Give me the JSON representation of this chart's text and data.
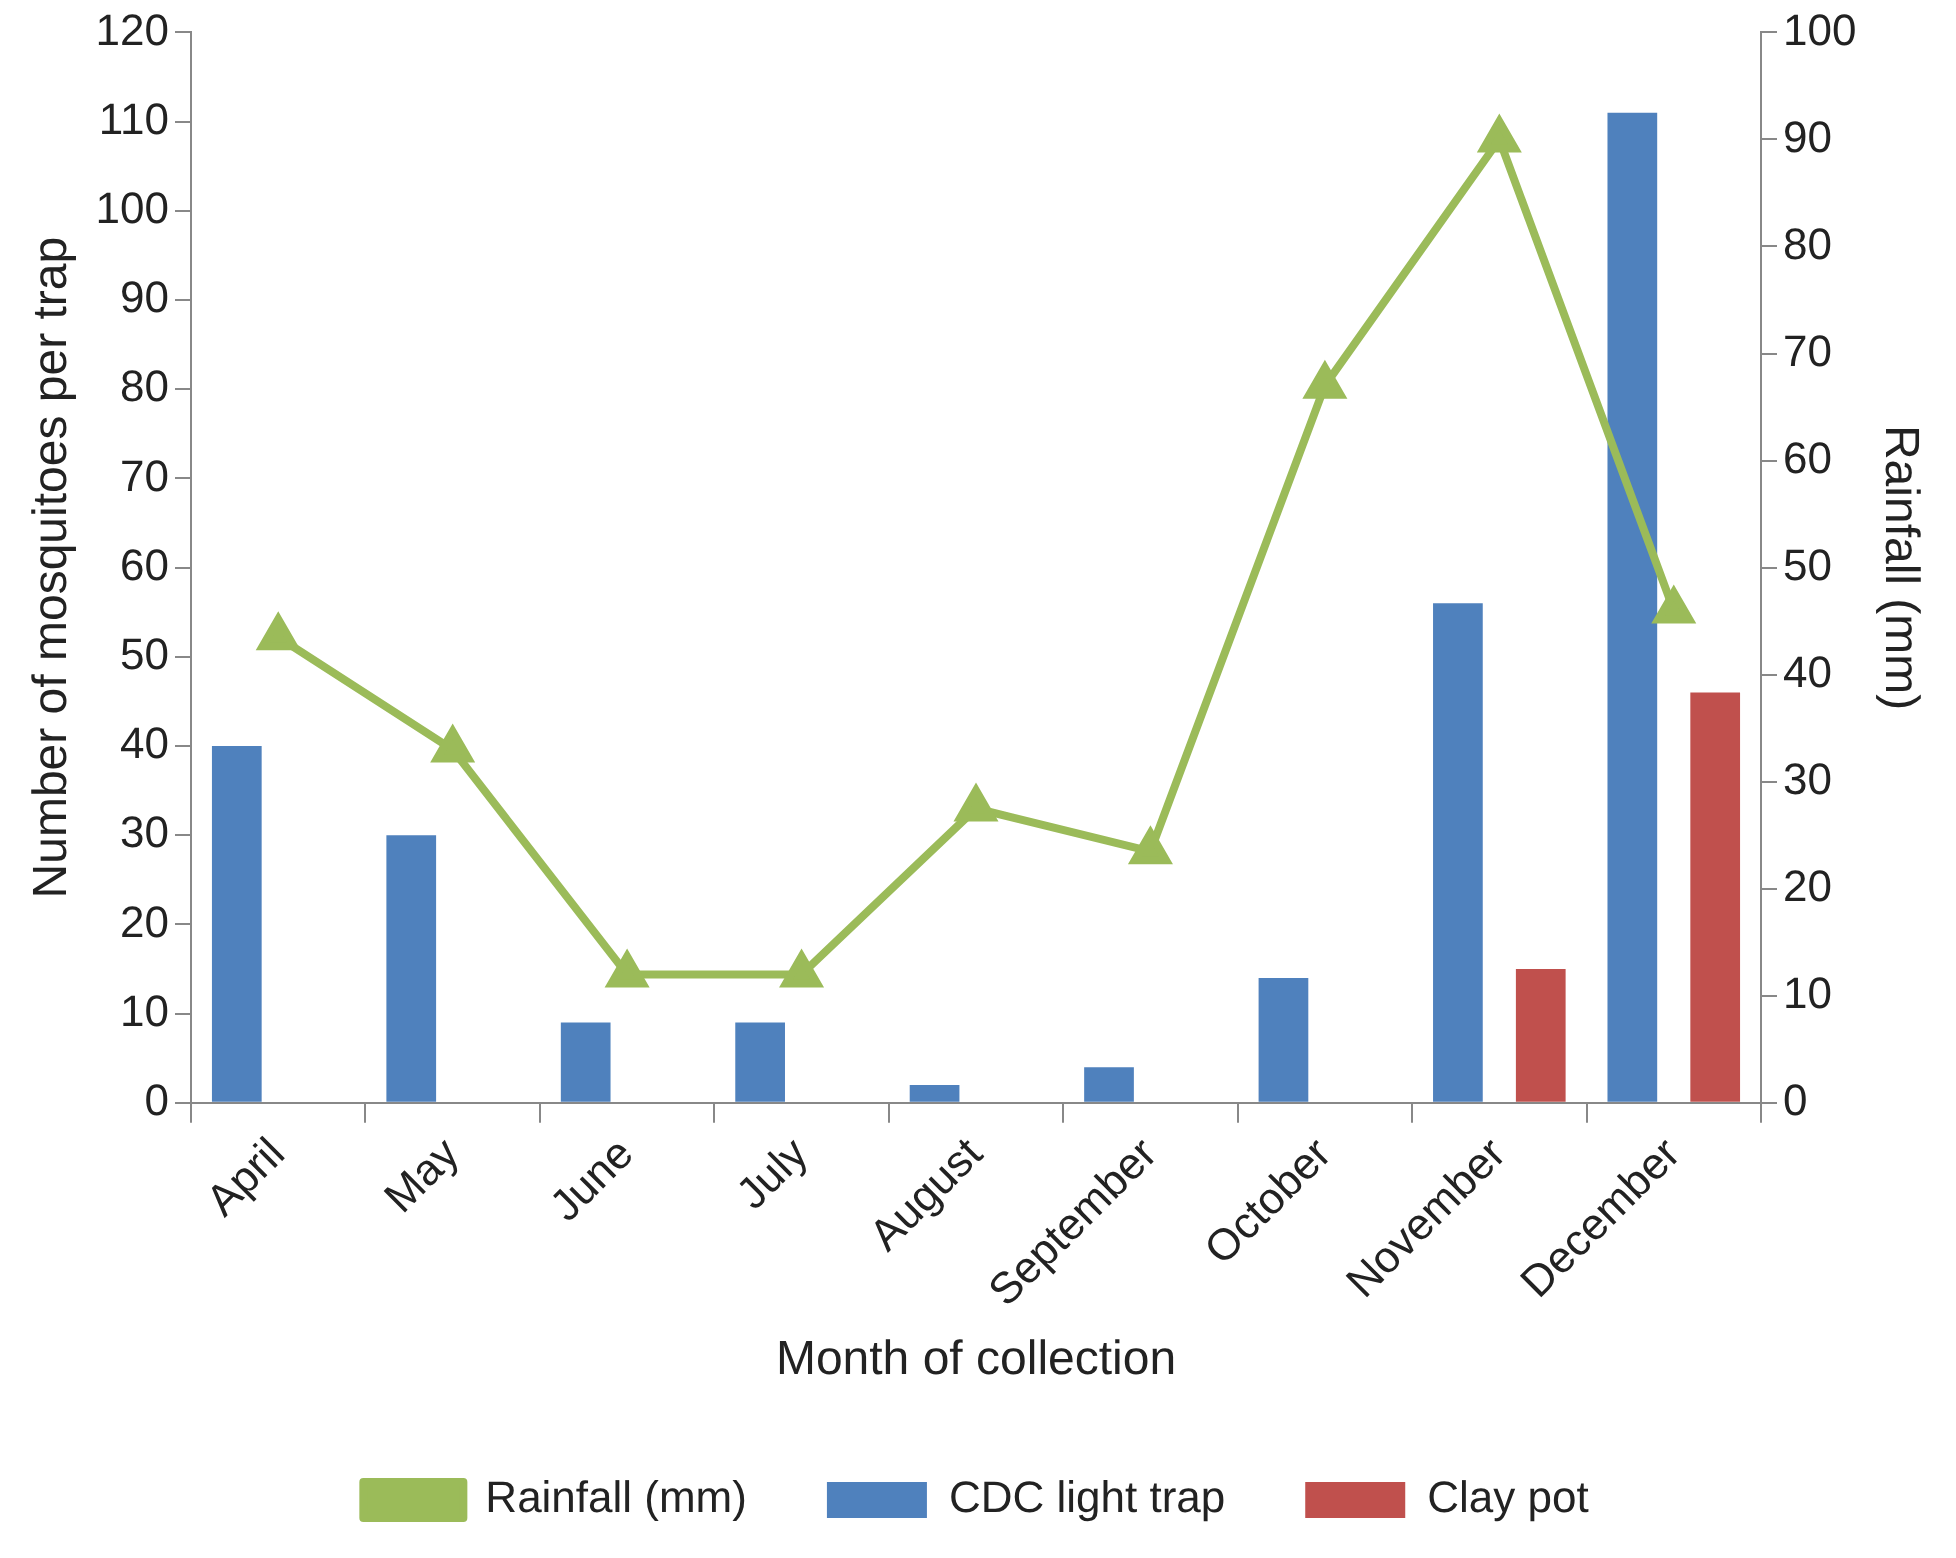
{
  "chart_data": {
    "type": "bar",
    "xlabel": "Month of collection",
    "ylabel": "Number of mosquitoes per trap",
    "y2label": "Rainfall (mm)",
    "categories": [
      "April",
      "May",
      "June",
      "July",
      "August",
      "September",
      "October",
      "November",
      "December"
    ],
    "series": [
      {
        "name": "CDC light trap",
        "color": "#4f81bd",
        "values": [
          40,
          30,
          9,
          9,
          2,
          4,
          14,
          56,
          111
        ]
      },
      {
        "name": "Clay pot",
        "color": "#c0504d",
        "values": [
          0,
          0,
          0,
          0,
          0,
          0,
          0,
          15,
          46
        ]
      },
      {
        "name": "Rainfall (mm)",
        "type": "line",
        "axis": "y2",
        "color": "#9bbb59",
        "values": [
          43.5,
          33,
          12,
          12,
          27.5,
          23.5,
          67,
          90,
          46
        ]
      }
    ],
    "ylim": [
      0,
      120
    ],
    "yticks": [
      0,
      10,
      20,
      30,
      40,
      50,
      60,
      70,
      80,
      90,
      100,
      110,
      120
    ],
    "y2lim": [
      0,
      100
    ],
    "y2ticks": [
      0,
      10,
      20,
      30,
      40,
      50,
      60,
      70,
      80,
      90,
      100
    ],
    "grid": false,
    "legend": "bottom",
    "marker": "triangle",
    "line_style": "solid"
  }
}
